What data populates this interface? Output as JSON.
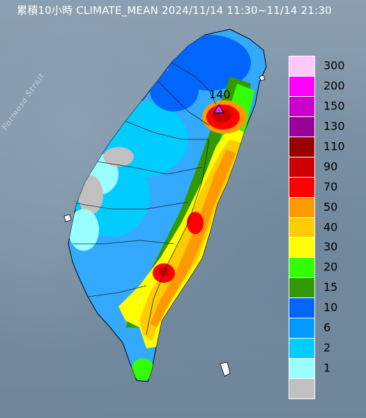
{
  "title": "累積10小時 CLIMATE_MEAN 2024/11/14 11:30~11/14 21:30",
  "strait_label": "Formosa Strait",
  "peak_label": "140",
  "legend": {
    "items": [
      {
        "label": "300",
        "color": "#ffc8fa"
      },
      {
        "label": "200",
        "color": "#ff00ff"
      },
      {
        "label": "150",
        "color": "#cc00cc"
      },
      {
        "label": "130",
        "color": "#990099"
      },
      {
        "label": "110",
        "color": "#990000"
      },
      {
        "label": "90",
        "color": "#cc0000"
      },
      {
        "label": "70",
        "color": "#ff0000"
      },
      {
        "label": "50",
        "color": "#ff9900"
      },
      {
        "label": "40",
        "color": "#ffcc00"
      },
      {
        "label": "30",
        "color": "#ffff00"
      },
      {
        "label": "20",
        "color": "#33ff00"
      },
      {
        "label": "15",
        "color": "#339900"
      },
      {
        "label": "10",
        "color": "#0066ff"
      },
      {
        "label": "6",
        "color": "#0099ff"
      },
      {
        "label": "2",
        "color": "#00ccff"
      },
      {
        "label": "1",
        "color": "#99ffff"
      },
      {
        "label": "",
        "color": "#c0c0c0"
      }
    ]
  },
  "colors": {
    "peak_marker": "#cc33ff"
  }
}
